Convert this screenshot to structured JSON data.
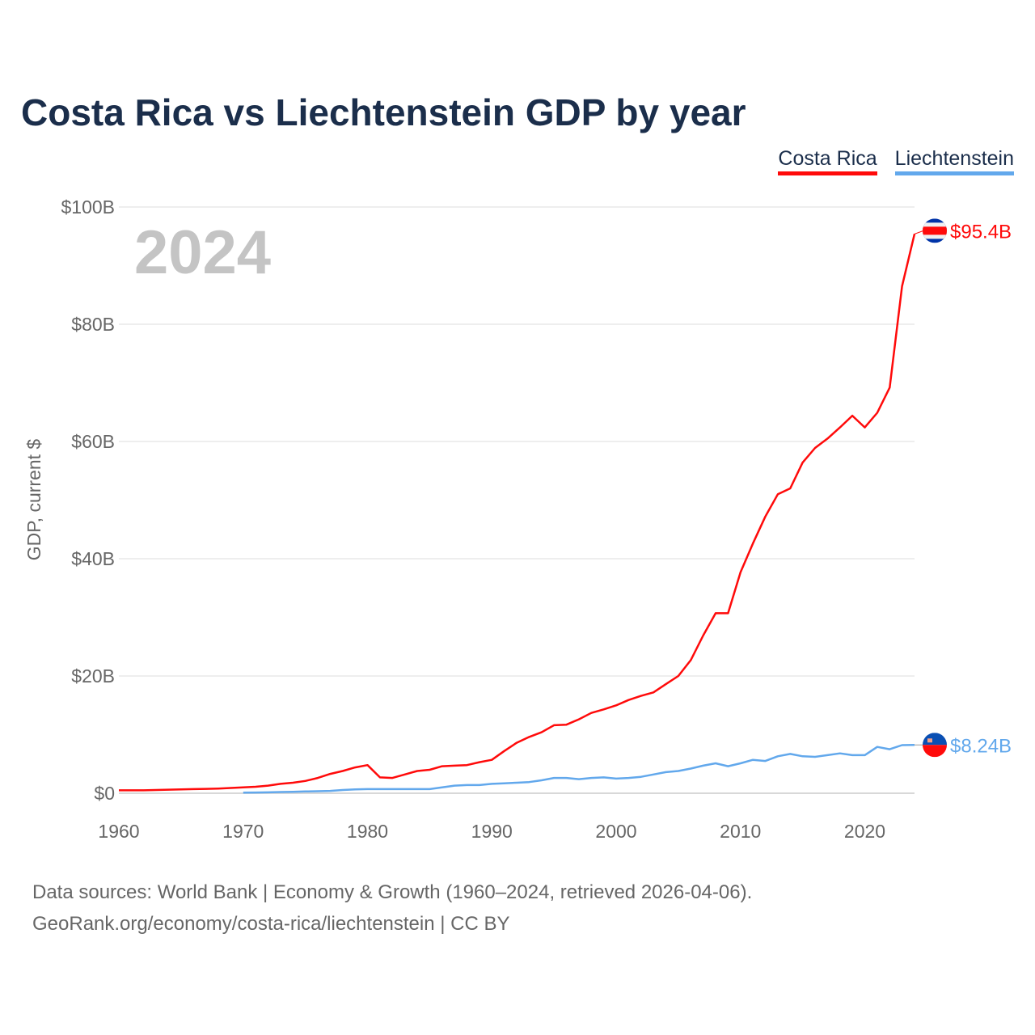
{
  "chart_data": {
    "type": "line",
    "title": "Costa Rica vs Liechtenstein GDP by year",
    "xlabel": "",
    "ylabel": "GDP, current $",
    "xlim": [
      1960,
      2024
    ],
    "ylim": [
      0,
      100
    ],
    "x_ticks": [
      1960,
      1970,
      1980,
      1990,
      2000,
      2010,
      2020
    ],
    "x_tick_labels": [
      "1960",
      "1970",
      "1980",
      "1990",
      "2000",
      "2010",
      "2020"
    ],
    "y_ticks": [
      0,
      20,
      40,
      60,
      80,
      100
    ],
    "y_tick_labels": [
      "$0",
      "$20B",
      "$40B",
      "$60B",
      "$80B",
      "$100B"
    ],
    "grid": true,
    "legend_position": "top-right",
    "year_label": "2024",
    "series": [
      {
        "name": "Costa Rica",
        "color": "#ff0a0a",
        "end_label": "$95.4B",
        "start_year": 1960,
        "values": [
          0.5,
          0.5,
          0.5,
          0.55,
          0.6,
          0.65,
          0.7,
          0.75,
          0.8,
          0.9,
          1.0,
          1.1,
          1.3,
          1.6,
          1.8,
          2.1,
          2.6,
          3.3,
          3.8,
          4.4,
          4.8,
          2.7,
          2.6,
          3.2,
          3.8,
          4.0,
          4.6,
          4.7,
          4.8,
          5.3,
          5.7,
          7.2,
          8.6,
          9.6,
          10.4,
          11.6,
          11.7,
          12.6,
          13.7,
          14.3,
          15.0,
          15.9,
          16.6,
          17.2,
          18.6,
          20.0,
          22.7,
          26.9,
          30.7,
          30.7,
          37.7,
          42.6,
          47.2,
          51.0,
          52.0,
          56.4,
          58.9,
          60.5,
          62.4,
          64.4,
          62.4,
          64.9,
          69.2,
          86.5,
          95.4
        ]
      },
      {
        "name": "Liechtenstein",
        "color": "#62a8ec",
        "end_label": "$8.24B",
        "start_year": 1970,
        "values": [
          0.1,
          0.12,
          0.15,
          0.2,
          0.25,
          0.3,
          0.35,
          0.4,
          0.55,
          0.65,
          0.7,
          0.7,
          0.7,
          0.7,
          0.7,
          0.7,
          1.0,
          1.3,
          1.4,
          1.4,
          1.6,
          1.7,
          1.8,
          1.9,
          2.2,
          2.6,
          2.6,
          2.4,
          2.6,
          2.7,
          2.5,
          2.6,
          2.8,
          3.2,
          3.6,
          3.8,
          4.2,
          4.7,
          5.1,
          4.6,
          5.1,
          5.7,
          5.5,
          6.3,
          6.7,
          6.3,
          6.2,
          6.5,
          6.8,
          6.5,
          6.5,
          7.9,
          7.5,
          8.2,
          8.24
        ]
      }
    ]
  },
  "footer": {
    "line1": "Data sources: World Bank | Economy & Growth (1960–2024, retrieved 2026-04-06).",
    "line2": "GeoRank.org/economy/costa-rica/liechtenstein | CC BY"
  }
}
